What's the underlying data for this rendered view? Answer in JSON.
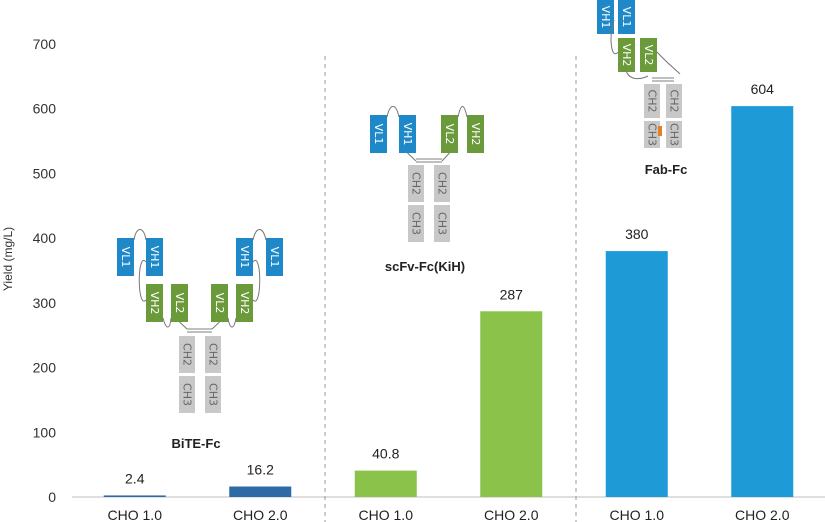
{
  "chart_data": {
    "type": "bar",
    "ylabel": "Yield (mg/L)",
    "ylim": [
      0,
      700
    ],
    "yticks": [
      0,
      100,
      200,
      300,
      400,
      500,
      600,
      700
    ],
    "grid": false,
    "groups": [
      {
        "name": "BiTE-Fc",
        "color": "#2e6aa6",
        "bars": [
          {
            "category": "CHO 1.0",
            "value": 2.4,
            "label": "2.4"
          },
          {
            "category": "CHO 2.0",
            "value": 16.2,
            "label": "16.2"
          }
        ]
      },
      {
        "name": "scFv-Fc(KiH)",
        "color": "#8bc34a",
        "bars": [
          {
            "category": "CHO 1.0",
            "value": 40.8,
            "label": "40.8"
          },
          {
            "category": "CHO 2.0",
            "value": 287,
            "label": "287"
          }
        ]
      },
      {
        "name": "Fab-Fc",
        "color": "#1e9bd7",
        "bars": [
          {
            "category": "CHO 1.0",
            "value": 380,
            "label": "380"
          },
          {
            "category": "CHO 2.0",
            "value": 604,
            "label": "604"
          }
        ]
      }
    ]
  },
  "diagram_labels": {
    "vl1": "VL1",
    "vh1": "VH1",
    "vl2": "VL2",
    "vh2": "VH2",
    "ch2": "CH2",
    "ch3": "CH3"
  },
  "colors": {
    "blue_domain": "#1e88c8",
    "green_domain": "#6a9a3a",
    "grey_domain": "#c8c8c8",
    "knob": "#e67e22"
  }
}
